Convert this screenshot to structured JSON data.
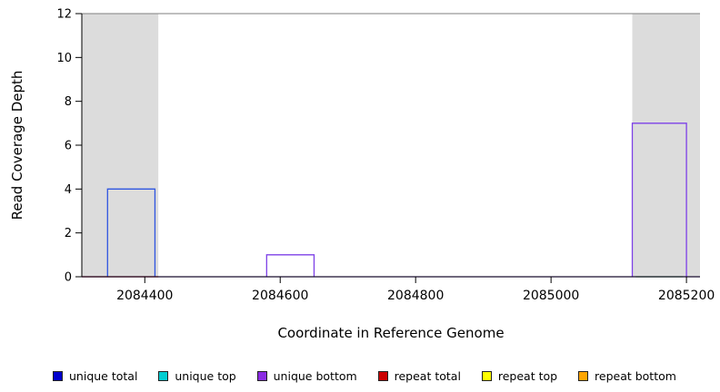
{
  "chart_data": {
    "type": "bar",
    "title": "",
    "xlabel": "Coordinate in Reference Genome",
    "ylabel": "Read Coverage Depth",
    "xlim": [
      2084307,
      2085220
    ],
    "ylim": [
      0,
      12
    ],
    "x_ticks": [
      2084400,
      2084600,
      2084800,
      2085000,
      2085200
    ],
    "y_ticks": [
      0,
      2,
      4,
      6,
      8,
      10,
      12
    ],
    "grid": false,
    "plot_border_top_color": "#7f7f7f",
    "shade_color": "#dcdcdc",
    "shaded_regions": [
      {
        "x0": 2084307,
        "x1": 2084420,
        "color": "#dcdcdc"
      },
      {
        "x0": 2085120,
        "x1": 2085220,
        "color": "#dcdcdc"
      }
    ],
    "bars": [
      {
        "series": "unique total",
        "x0": 2084345,
        "x1": 2084415,
        "height": 4,
        "color": "#2f55e0"
      },
      {
        "series": "unique bottom",
        "x0": 2084580,
        "x1": 2084650,
        "height": 1,
        "color": "#7d40e7"
      },
      {
        "series": "unique bottom",
        "x0": 2085120,
        "x1": 2085200,
        "height": 7,
        "color": "#7d40e7"
      }
    ],
    "baseline_segments": [
      {
        "series": "unique bottom",
        "x0": 2084307,
        "x1": 2085220,
        "y": 0,
        "color": "#7d40e7"
      },
      {
        "series": "repeat total",
        "x0": 2084307,
        "x1": 2084420,
        "y": 0,
        "color": "#cc2222"
      },
      {
        "series": "unlabeled",
        "x0": 2085125,
        "x1": 2085195,
        "y": 0,
        "color": "#55bb55"
      }
    ],
    "legend": [
      {
        "label": "unique total",
        "color": "#0000cd"
      },
      {
        "label": "unique top",
        "color": "#00ced1"
      },
      {
        "label": "unique bottom",
        "color": "#8a2be2"
      },
      {
        "label": "repeat total",
        "color": "#cc0000"
      },
      {
        "label": "repeat top",
        "color": "#ffff00"
      },
      {
        "label": "repeat bottom",
        "color": "#ffa500"
      }
    ],
    "legend_position": "bottom"
  }
}
